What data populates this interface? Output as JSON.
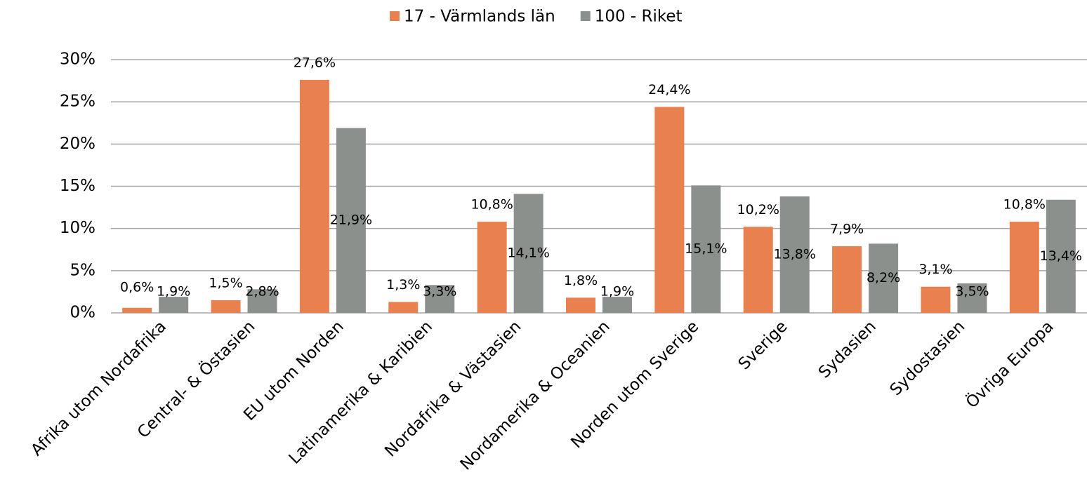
{
  "chart_data": {
    "type": "bar",
    "categories": [
      "Afrika utom Nordafrika",
      "Central- & Östasien",
      "EU utom Norden",
      "Latinamerika & Karibien",
      "Nordafrika & Västasien",
      "Nordamerika & Oceanien",
      "Norden utom Sverige",
      "Sverige",
      "Sydasien",
      "Sydostasien",
      "Övriga Europa"
    ],
    "series": [
      {
        "name": "17 - Värmlands län",
        "color": "#e8804f",
        "values": [
          0.6,
          1.5,
          27.6,
          1.3,
          10.8,
          1.8,
          24.4,
          10.2,
          7.9,
          3.1,
          10.8
        ],
        "value_labels": [
          "0,6%",
          "1,5%",
          "27,6%",
          "1,3%",
          "10,8%",
          "1,8%",
          "24,4%",
          "10,2%",
          "7,9%",
          "3,1%",
          "10,8%"
        ]
      },
      {
        "name": "100 - Riket",
        "color": "#8c908d",
        "values": [
          1.9,
          2.8,
          21.9,
          3.3,
          14.1,
          1.9,
          15.1,
          13.8,
          8.2,
          3.5,
          13.4
        ],
        "value_labels": [
          "1,9%",
          "2,8%",
          "21,9%",
          "3,3%",
          "14,1%",
          "1,9%",
          "15,1%",
          "13,8%",
          "8,2%",
          "3,5%",
          "13,4%"
        ]
      }
    ],
    "ylim": [
      0,
      30
    ],
    "yticks": [
      {
        "value": 0,
        "label": "0%"
      },
      {
        "value": 5,
        "label": "5%"
      },
      {
        "value": 10,
        "label": "10%"
      },
      {
        "value": 15,
        "label": "15%"
      },
      {
        "value": 20,
        "label": "20%"
      },
      {
        "value": 25,
        "label": "25%"
      },
      {
        "value": 30,
        "label": "30%"
      }
    ],
    "grid": true,
    "legend": "top"
  }
}
